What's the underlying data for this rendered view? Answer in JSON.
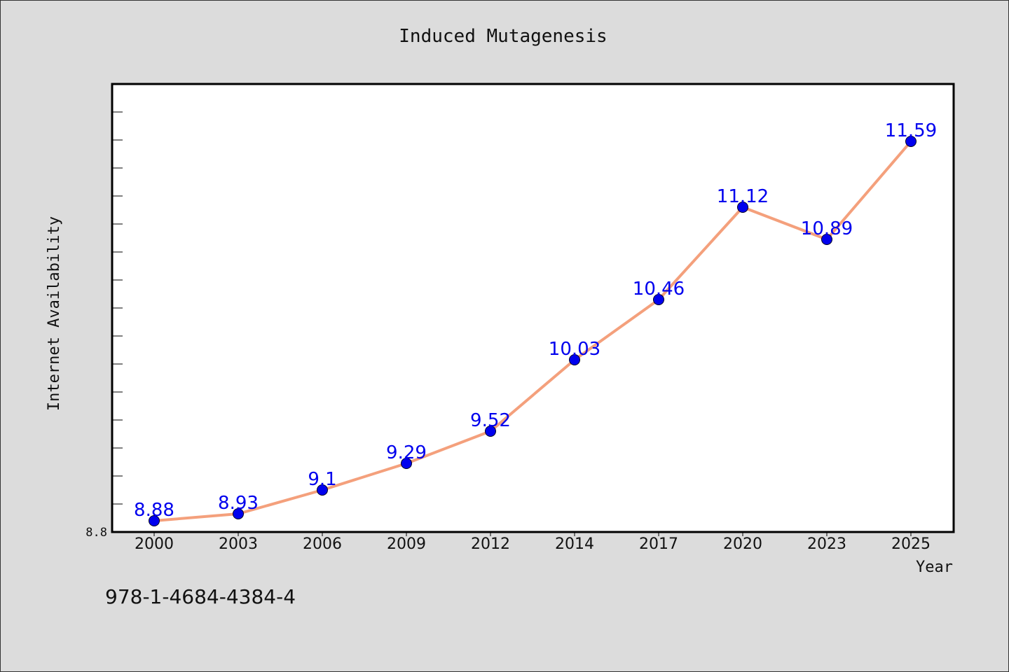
{
  "chart_data": {
    "type": "line",
    "title": "Induced Mutagenesis",
    "xlabel": "Year",
    "ylabel": "Internet Availability",
    "categories": [
      "2000",
      "2003",
      "2006",
      "2009",
      "2012",
      "2014",
      "2017",
      "2020",
      "2023",
      "2025"
    ],
    "series": [
      {
        "values": [
          8.88,
          8.93,
          9.1,
          9.29,
          9.52,
          10.03,
          10.46,
          11.12,
          10.89,
          11.59
        ]
      }
    ],
    "data_labels": [
      "8.88",
      "8.93",
      "9.1",
      "9.29",
      "9.52",
      "10.03",
      "10.46",
      "11.12",
      "10.89",
      "11.59"
    ],
    "ylim": [
      8.8,
      12.0
    ],
    "y_tick_label": "8.8",
    "grid": false,
    "colors": {
      "line": "#f4a07c",
      "marker": "#0000ee",
      "label": "#0000ee"
    }
  },
  "footer": {
    "isbn": "978-1-4684-4384-4"
  }
}
